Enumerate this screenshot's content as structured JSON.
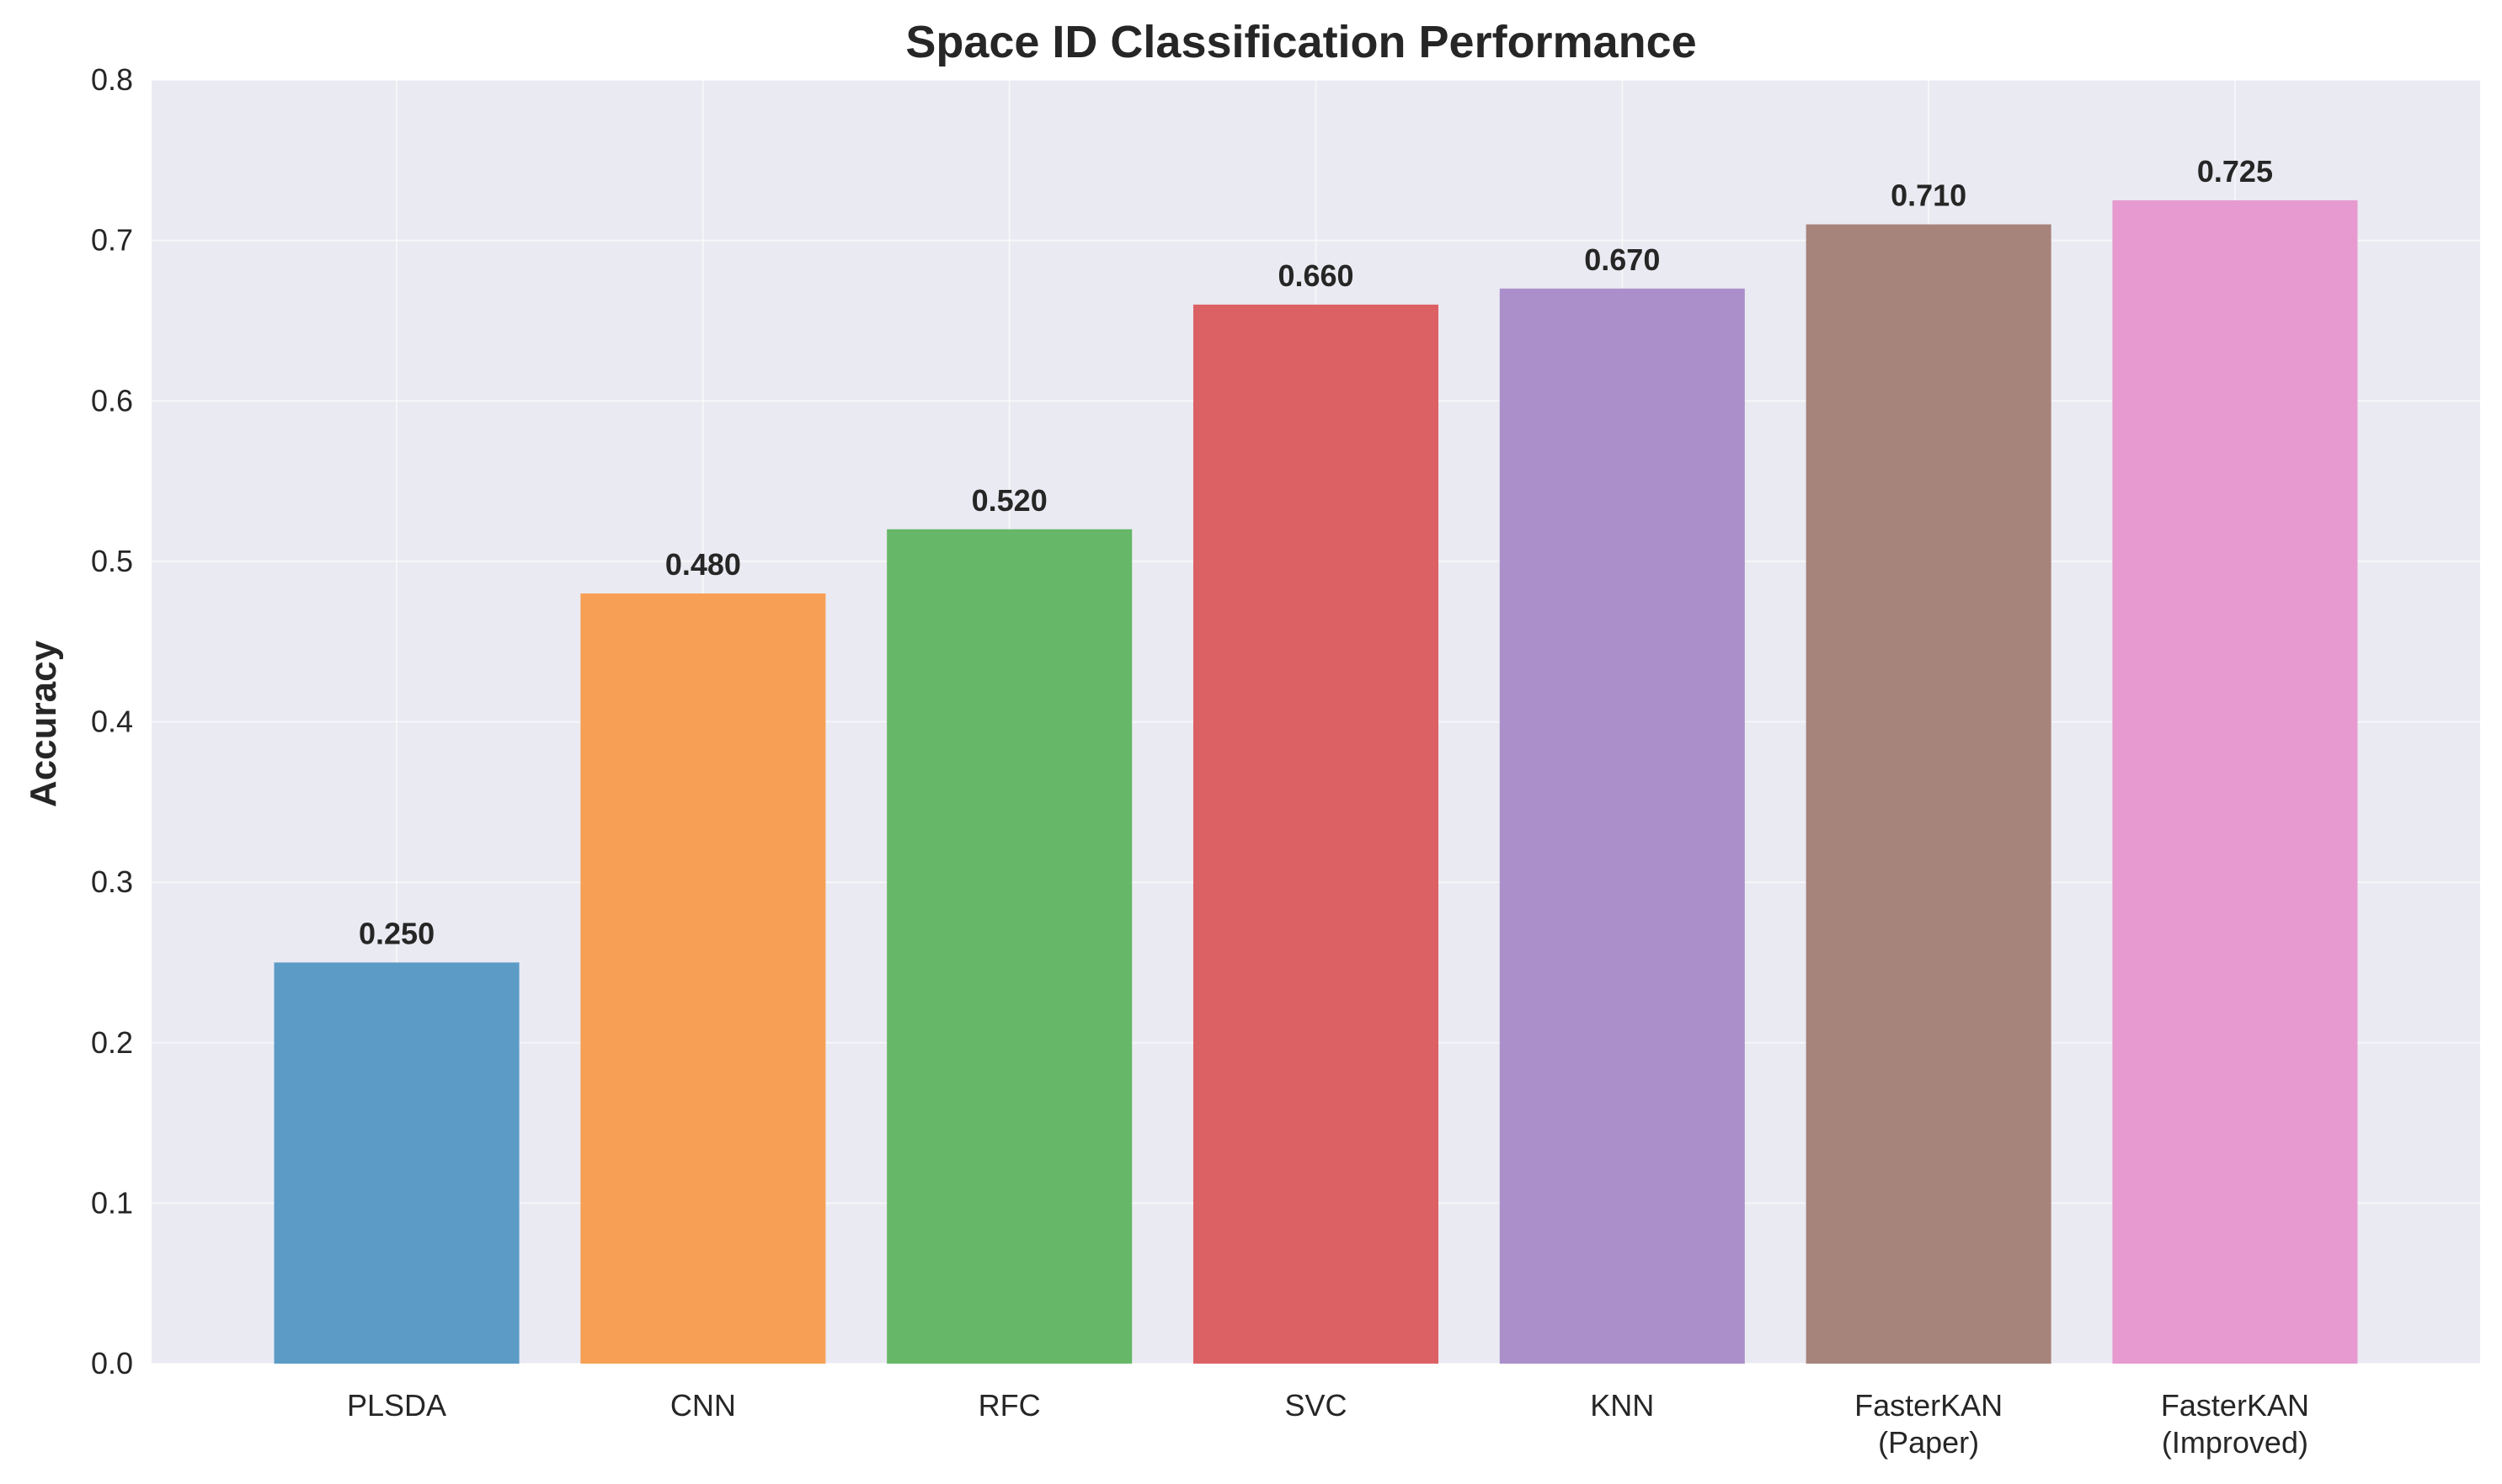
{
  "chart_data": {
    "type": "bar",
    "title": "Space ID Classification Performance",
    "xlabel": "",
    "ylabel": "Accuracy",
    "ylim": [
      0,
      0.8
    ],
    "yticks": [
      "0.0",
      "0.1",
      "0.2",
      "0.3",
      "0.4",
      "0.5",
      "0.6",
      "0.7",
      "0.8"
    ],
    "grid": true,
    "categories": [
      [
        "PLSDA"
      ],
      [
        "CNN"
      ],
      [
        "RFC"
      ],
      [
        "SVC"
      ],
      [
        "KNN"
      ],
      [
        "FasterKAN",
        "(Paper)"
      ],
      [
        "FasterKAN",
        "(Improved)"
      ]
    ],
    "values": [
      0.25,
      0.48,
      0.52,
      0.66,
      0.67,
      0.71,
      0.725
    ],
    "value_labels": [
      "0.250",
      "0.480",
      "0.520",
      "0.660",
      "0.670",
      "0.710",
      "0.725"
    ],
    "colors": [
      "#5b9bc6",
      "#f7a055",
      "#66b768",
      "#dc6164",
      "#ab8fca",
      "#a6837b",
      "#e69acf"
    ],
    "background": "#eaeaf2"
  }
}
